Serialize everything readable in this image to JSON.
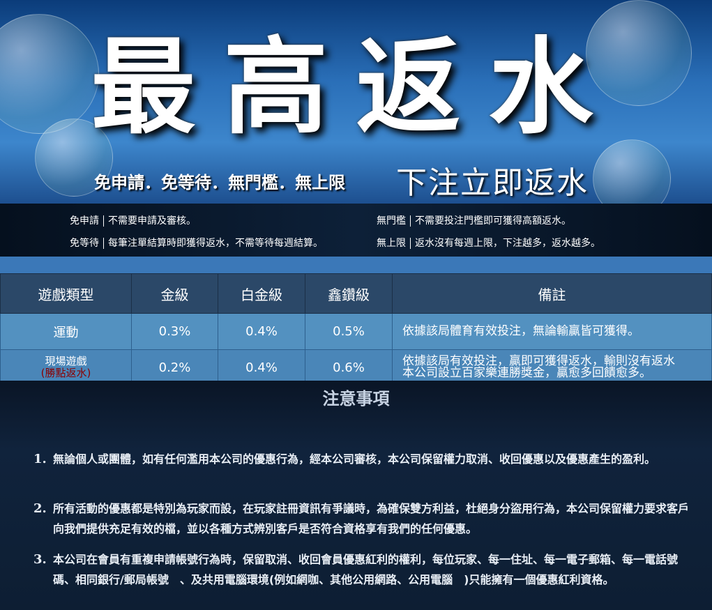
{
  "banner": {
    "title": "最高返水",
    "tagline": "免申請．免等待．無門檻．無上限",
    "highlight": "下注立即返水"
  },
  "features": [
    {
      "name": "免申請",
      "desc": "不需要申請及審核。"
    },
    {
      "name": "無門檻",
      "desc": "不需要投注門檻即可獲得高額返水。"
    },
    {
      "name": "免等待",
      "desc": "每筆注單結算時即獲得返水，不需等待每週結算。"
    },
    {
      "name": "無上限",
      "desc": "返水沒有每週上限，下注越多，返水越多。"
    }
  ],
  "table": {
    "headers": [
      "遊戲類型",
      "金級",
      "白金級",
      "鑫鑽級",
      "備註"
    ],
    "rows": [
      {
        "type": "運動",
        "rates": [
          "0.3%",
          "0.4%",
          "0.5%"
        ],
        "note": [
          "依據該局體育有效投注，無論輸贏皆可獲得。"
        ]
      },
      {
        "type": "現場遊戲",
        "type_note": "(勝點返水)",
        "rates": [
          "0.2%",
          "0.4%",
          "0.6%"
        ],
        "note": [
          "依據該局有效投注，贏即可獲得返水，輸則沒有返水",
          "本公司設立百家樂連勝獎金，贏愈多回饋愈多。"
        ]
      }
    ]
  },
  "notices": {
    "title": "注意事項",
    "items": [
      {
        "number": "1.",
        "text": "無論個人或團體，如有任何濫用本公司的優惠行為，經本公司審核，本公司保留權力取消、收回優惠以及優惠產生的盈利。"
      },
      {
        "number": "2.",
        "text": "所有活動的優惠都是特別為玩家而設，在玩家註冊資訊有爭議時，為確保雙方利益，杜絕身分盜用行為，本公司保留權力要求客戶向我們提供充足有效的檔，並以各種方式辨別客戶是否符合資格享有我們的任何優惠。"
      },
      {
        "number": "3.",
        "text": "本公司在會員有重複申請帳號行為時，保留取消、收回會員優惠紅利的權利，每位玩家、每一住址、每一電子郵箱、每一電話號碼、相同銀行/郵局帳號　、及共用電腦環境(例如網咖、其他公用網路、公用電腦　)只能擁有一個優惠紅利資格。"
      }
    ]
  }
}
